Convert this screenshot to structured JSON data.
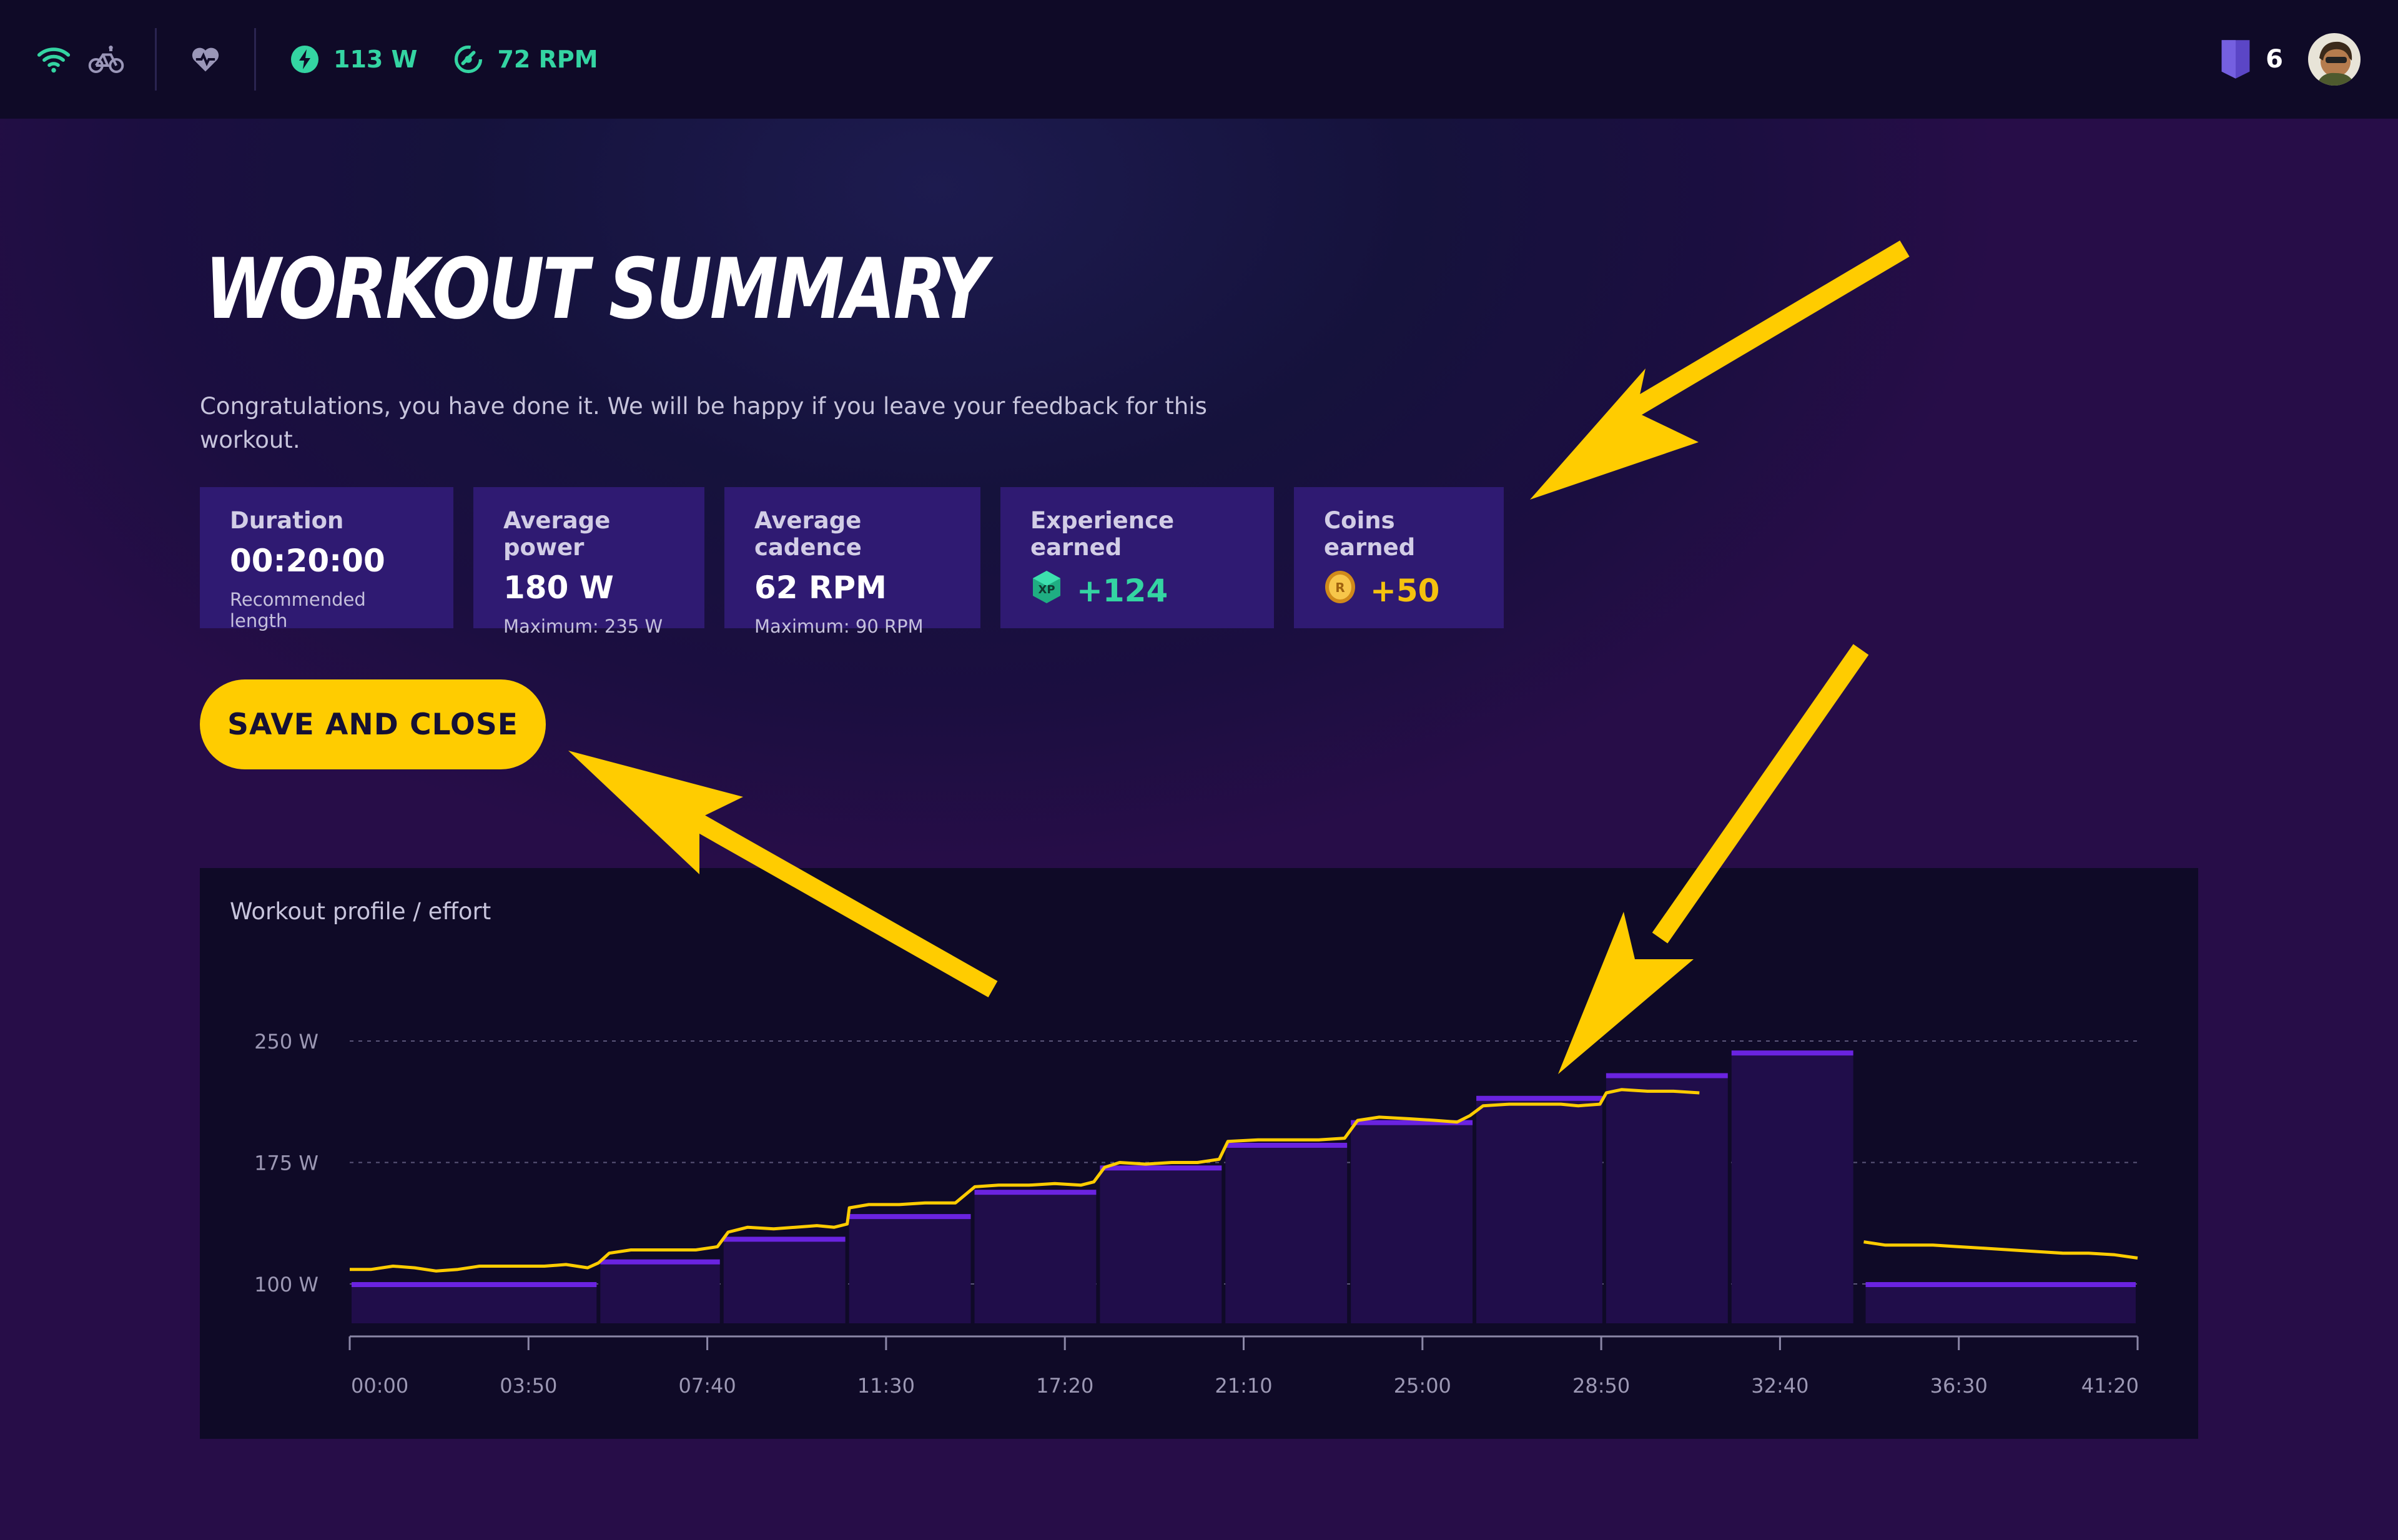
{
  "topbar": {
    "icons": [
      "wifi-icon",
      "bike-icon",
      "heart-icon"
    ],
    "power": "113 W",
    "cadence": "72 RPM",
    "level": "6",
    "colors": {
      "accent": "#34d4a2",
      "background": "#0f0a27"
    }
  },
  "page": {
    "title": "WORKOUT SUMMARY",
    "subtitle": "Congratulations, you have done it. We will be happy if you leave your feedback for this workout."
  },
  "cards": {
    "duration": {
      "label": "Duration",
      "value": "00:20:00",
      "sub": "Recommended length"
    },
    "power": {
      "label": "Average power",
      "value": "180 W",
      "sub": "Maximum: 235 W"
    },
    "cadence": {
      "label": "Average cadence",
      "value": "62 RPM",
      "sub": "Maximum: 90 RPM"
    },
    "xp": {
      "label": "Experience earned",
      "value": "+124",
      "badge": "XP"
    },
    "coins": {
      "label": "Coins earned",
      "value": "+50",
      "badge": "R"
    }
  },
  "actions": {
    "save_label": "SAVE AND CLOSE",
    "accent": "#ffcc00"
  },
  "chart_data": {
    "type": "bar",
    "title": "Workout profile / effort",
    "y_ticks": [
      "250 W",
      "175 W",
      "100 W"
    ],
    "y_tick_values": [
      250,
      175,
      100
    ],
    "ylim": [
      75,
      250
    ],
    "x_ticks": [
      "00:00",
      "03:50",
      "07:40",
      "11:30",
      "17:20",
      "21:10",
      "25:00",
      "28:50",
      "32:40",
      "36:30",
      "41:20"
    ],
    "x_range": [
      0,
      41.33
    ],
    "segments": [
      {
        "start": 0,
        "end": 5.75,
        "target": 100
      },
      {
        "start": 5.75,
        "end": 8.6,
        "target": 114
      },
      {
        "start": 8.6,
        "end": 11.5,
        "target": 128
      },
      {
        "start": 11.5,
        "end": 14.4,
        "target": 142
      },
      {
        "start": 14.4,
        "end": 17.3,
        "target": 157
      },
      {
        "start": 17.3,
        "end": 20.2,
        "target": 172
      },
      {
        "start": 20.2,
        "end": 23.1,
        "target": 186
      },
      {
        "start": 23.1,
        "end": 26.0,
        "target": 200
      },
      {
        "start": 26.0,
        "end": 29.0,
        "target": 215
      },
      {
        "start": 29.0,
        "end": 31.9,
        "target": 229
      },
      {
        "start": 31.9,
        "end": 34.8,
        "target": 243
      },
      {
        "start": 35.0,
        "end": 41.33,
        "target": 100
      }
    ],
    "effort": [
      [
        0,
        109
      ],
      [
        0.5,
        109
      ],
      [
        1.0,
        111
      ],
      [
        1.5,
        110
      ],
      [
        2.0,
        108
      ],
      [
        2.5,
        109
      ],
      [
        3.0,
        111
      ],
      [
        3.5,
        111
      ],
      [
        4.0,
        111
      ],
      [
        4.5,
        111
      ],
      [
        5.0,
        112
      ],
      [
        5.5,
        110
      ],
      [
        5.75,
        113
      ],
      [
        6.0,
        119
      ],
      [
        6.5,
        121
      ],
      [
        7.0,
        121
      ],
      [
        7.5,
        121
      ],
      [
        8.0,
        121
      ],
      [
        8.5,
        123
      ],
      [
        8.75,
        132
      ],
      [
        9.2,
        135
      ],
      [
        9.8,
        134
      ],
      [
        10.3,
        135
      ],
      [
        10.8,
        136
      ],
      [
        11.2,
        135
      ],
      [
        11.5,
        137
      ],
      [
        11.55,
        147
      ],
      [
        12.0,
        149
      ],
      [
        12.7,
        149
      ],
      [
        13.3,
        150
      ],
      [
        14.0,
        150
      ],
      [
        14.45,
        160
      ],
      [
        15.0,
        161
      ],
      [
        15.7,
        161
      ],
      [
        16.3,
        162
      ],
      [
        16.9,
        161
      ],
      [
        17.2,
        163
      ],
      [
        17.45,
        172
      ],
      [
        17.8,
        175
      ],
      [
        18.4,
        174
      ],
      [
        19.0,
        175
      ],
      [
        19.6,
        175
      ],
      [
        20.1,
        177
      ],
      [
        20.3,
        188
      ],
      [
        21.0,
        189
      ],
      [
        21.7,
        189
      ],
      [
        22.4,
        189
      ],
      [
        23.0,
        190
      ],
      [
        23.3,
        201
      ],
      [
        23.8,
        203
      ],
      [
        24.5,
        202
      ],
      [
        25.1,
        201
      ],
      [
        25.6,
        200
      ],
      [
        25.9,
        204
      ],
      [
        26.2,
        210
      ],
      [
        26.8,
        211
      ],
      [
        27.4,
        211
      ],
      [
        28.0,
        211
      ],
      [
        28.4,
        210
      ],
      [
        28.9,
        211
      ],
      [
        29.05,
        218
      ],
      [
        29.4,
        220
      ],
      [
        30.0,
        219
      ],
      [
        30.6,
        219
      ],
      [
        31.2,
        218
      ]
    ],
    "cooldown_effort": [
      [
        35.0,
        126
      ],
      [
        35.5,
        124
      ],
      [
        36.0,
        124
      ],
      [
        36.6,
        124
      ],
      [
        37.2,
        123
      ],
      [
        37.8,
        122
      ],
      [
        38.4,
        121
      ],
      [
        39.0,
        120
      ],
      [
        39.6,
        119
      ],
      [
        40.2,
        119
      ],
      [
        40.8,
        118
      ],
      [
        41.33,
        116
      ]
    ],
    "colors": {
      "bar": "#200d4a",
      "bar_top": "#6a23e0",
      "effort_line": "#ffcc00",
      "grid": "#5b567a"
    }
  }
}
